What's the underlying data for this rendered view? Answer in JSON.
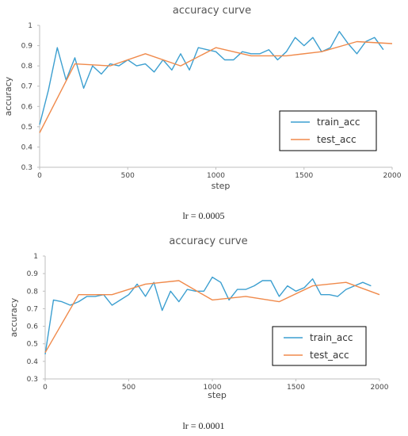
{
  "colors": {
    "train": "#3c9fd0",
    "test": "#f08a4b",
    "axis": "#bfbfbf",
    "text": "#444444"
  },
  "charts": [
    {
      "caption": "lr = 0.0005",
      "chart_data": {
        "type": "line",
        "title": "accuracy curve",
        "xlabel": "step",
        "ylabel": "accuracy",
        "xlim": [
          0,
          2000
        ],
        "ylim": [
          0.3,
          1.0
        ],
        "xticks": [
          0,
          500,
          1000,
          1500,
          2000
        ],
        "yticks": [
          0.3,
          0.4,
          0.5,
          0.6,
          0.7,
          0.8,
          0.9,
          1
        ],
        "ytick_labels": [
          "0.3",
          "0.4",
          "0.5",
          "0.6",
          "0.7",
          "0.8",
          "0.9",
          "1"
        ],
        "legend_position": "lower-right",
        "series": [
          {
            "name": "train_acc",
            "color": "#3c9fd0",
            "x": [
              0,
              50,
              100,
              150,
              200,
              250,
              300,
              350,
              400,
              450,
              500,
              550,
              600,
              650,
              700,
              750,
              800,
              850,
              900,
              950,
              1000,
              1050,
              1100,
              1150,
              1200,
              1250,
              1300,
              1350,
              1400,
              1450,
              1500,
              1550,
              1600,
              1650,
              1700,
              1750,
              1800,
              1850,
              1900,
              1950
            ],
            "y": [
              0.51,
              0.68,
              0.89,
              0.73,
              0.84,
              0.69,
              0.8,
              0.76,
              0.81,
              0.8,
              0.83,
              0.8,
              0.81,
              0.77,
              0.83,
              0.78,
              0.86,
              0.78,
              0.89,
              0.88,
              0.87,
              0.83,
              0.83,
              0.87,
              0.86,
              0.86,
              0.88,
              0.83,
              0.87,
              0.94,
              0.9,
              0.94,
              0.87,
              0.89,
              0.97,
              0.91,
              0.86,
              0.92,
              0.94,
              0.88
            ]
          },
          {
            "name": "test_acc",
            "color": "#f08a4b",
            "x": [
              0,
              200,
              400,
              600,
              800,
              1000,
              1200,
              1400,
              1600,
              1800,
              2000
            ],
            "y": [
              0.47,
              0.81,
              0.8,
              0.86,
              0.8,
              0.89,
              0.85,
              0.85,
              0.87,
              0.92,
              0.91
            ]
          }
        ]
      }
    },
    {
      "caption": "lr = 0.0001",
      "chart_data": {
        "type": "line",
        "title": "accuracy curve",
        "xlabel": "step",
        "ylabel": "accuracy",
        "xlim": [
          0,
          2000
        ],
        "ylim": [
          0.3,
          1.0
        ],
        "xticks": [
          0,
          500,
          1000,
          1500,
          2000
        ],
        "yticks": [
          0.3,
          0.4,
          0.5,
          0.6,
          0.7,
          0.8,
          0.9,
          1
        ],
        "ytick_labels": [
          "0.3",
          "0.4",
          "0.5",
          "0.6",
          "0.7",
          "0.8",
          "0.9",
          "1"
        ],
        "legend_position": "lower-right",
        "series": [
          {
            "name": "train_acc",
            "color": "#3c9fd0",
            "x": [
              0,
              50,
              100,
              150,
              200,
              250,
              300,
              350,
              400,
              450,
              500,
              550,
              600,
              650,
              700,
              750,
              800,
              850,
              900,
              950,
              1000,
              1050,
              1100,
              1150,
              1200,
              1250,
              1300,
              1350,
              1400,
              1450,
              1500,
              1550,
              1600,
              1650,
              1700,
              1750,
              1800,
              1850,
              1900,
              1950
            ],
            "y": [
              0.44,
              0.75,
              0.74,
              0.72,
              0.74,
              0.77,
              0.77,
              0.78,
              0.72,
              0.75,
              0.78,
              0.84,
              0.77,
              0.85,
              0.69,
              0.8,
              0.74,
              0.81,
              0.8,
              0.8,
              0.88,
              0.85,
              0.75,
              0.81,
              0.81,
              0.83,
              0.86,
              0.86,
              0.77,
              0.83,
              0.8,
              0.82,
              0.87,
              0.78,
              0.78,
              0.77,
              0.81,
              0.83,
              0.85,
              0.83
            ]
          },
          {
            "name": "test_acc",
            "color": "#f08a4b",
            "x": [
              0,
              200,
              400,
              600,
              800,
              1000,
              1200,
              1400,
              1600,
              1800,
              2000
            ],
            "y": [
              0.45,
              0.78,
              0.78,
              0.84,
              0.86,
              0.75,
              0.77,
              0.74,
              0.83,
              0.85,
              0.78
            ]
          }
        ]
      }
    }
  ]
}
